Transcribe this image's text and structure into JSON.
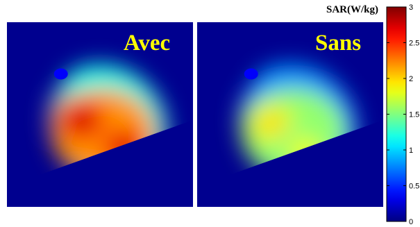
{
  "chart_data": {
    "type": "heatmap",
    "colormap": "jet",
    "colors": {
      "background": "#00008f",
      "label": "#ffff00"
    },
    "panels": [
      {
        "label": "Avec",
        "hotspots": [
          {
            "x": 0.4,
            "y": 0.53,
            "sar": 2.8
          },
          {
            "x": 0.63,
            "y": 0.68,
            "sar": 2.75
          }
        ],
        "peak_sar": 2.8
      },
      {
        "label": "Sans",
        "hotspots": [
          {
            "x": 0.4,
            "y": 0.55,
            "sar": 2.0
          },
          {
            "x": 0.58,
            "y": 0.7,
            "sar": 1.85
          }
        ],
        "peak_sar": 2.0
      }
    ],
    "colorbar": {
      "title": "SAR(W/kg)",
      "range": [
        0,
        3
      ],
      "ticks": [
        0,
        0.5,
        1,
        1.5,
        2,
        2.5,
        3
      ],
      "tick_labels": [
        "0",
        "0.5",
        "1",
        "1.5",
        "2",
        "2.5",
        "3"
      ]
    }
  }
}
